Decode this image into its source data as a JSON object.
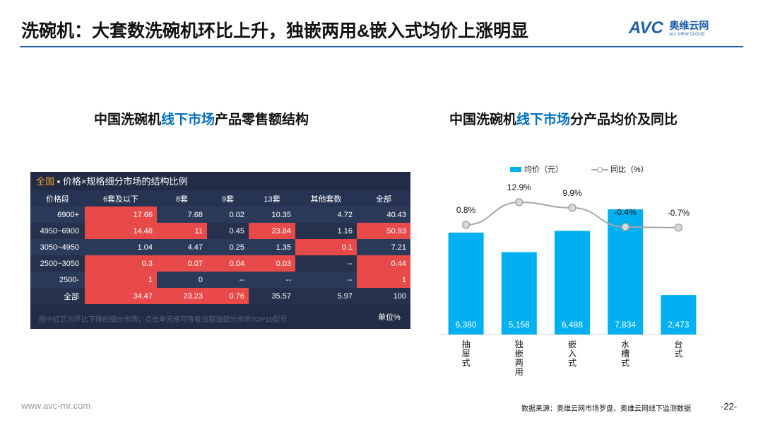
{
  "header": {
    "title": "洗碗机：大套数洗碗机环比上升，独嵌两用&嵌入式均价上涨明显",
    "logo": "AVC",
    "logo_cn": "奥维云网",
    "logo_en": "ALL VIEW CLOUD"
  },
  "left_title": {
    "prefix": "中国洗碗机",
    "highlight": "线下市场",
    "suffix": "产品零售额结构"
  },
  "table": {
    "title_highlight": "全国",
    "title": "▪ 价格×规格细分市场的结构比例",
    "columns": [
      "价格段",
      "6套及以下",
      "8套",
      "9套",
      "13套",
      "其他套数",
      "全部"
    ],
    "rows": [
      {
        "label": "6900+",
        "cells": [
          "17.66",
          "7.68",
          "0.02",
          "10.35",
          "4.72",
          "40.43"
        ],
        "red": [
          true,
          false,
          false,
          false,
          false,
          false
        ]
      },
      {
        "label": "4950~6900",
        "cells": [
          "14.48",
          "11",
          "0.45",
          "23.84",
          "1.16",
          "50.93"
        ],
        "red": [
          true,
          true,
          false,
          true,
          false,
          true
        ]
      },
      {
        "label": "3050~4950",
        "cells": [
          "1.04",
          "4.47",
          "0.25",
          "1.35",
          "0.1",
          "7.21"
        ],
        "red": [
          false,
          false,
          false,
          false,
          true,
          false
        ]
      },
      {
        "label": "2500~3050",
        "cells": [
          "0.3",
          "0.07",
          "0.04",
          "0.03",
          "--",
          "0.44"
        ],
        "red": [
          true,
          true,
          true,
          true,
          false,
          true
        ]
      },
      {
        "label": "2500-",
        "cells": [
          "1",
          "0",
          "--",
          "--",
          "--",
          "1"
        ],
        "red": [
          true,
          false,
          false,
          false,
          false,
          true
        ]
      },
      {
        "label": "全部",
        "cells": [
          "34.47",
          "23.23",
          "0.76",
          "35.57",
          "5.97",
          "100"
        ],
        "red": [
          true,
          true,
          true,
          false,
          false,
          false
        ]
      }
    ],
    "note": "图中红区为环比下降的细分市场；点击单元格可查看当期该细分市场TOP10型号",
    "unit": "单位%"
  },
  "chart_data": {
    "type": "bar",
    "title_prefix": "中国洗碗机",
    "title_highlight": "线下市场",
    "title_suffix": "分产品均价及同比",
    "categories": [
      "抽屉式",
      "独嵌两用",
      "嵌入式",
      "水槽式",
      "台式"
    ],
    "series": [
      {
        "name": "均价（元）",
        "type": "bar",
        "color": "#00b0f0",
        "values": [
          6380,
          5158,
          6488,
          7834,
          2473
        ],
        "value_labels": [
          "6,380",
          "5,158",
          "6,488",
          "7,834",
          "2,473"
        ]
      },
      {
        "name": "同比（%）",
        "type": "line",
        "axis": "y2",
        "color": "#a6a6a6",
        "values": [
          0.8,
          12.9,
          9.9,
          -0.4,
          -0.7
        ],
        "value_labels": [
          "0.8%",
          "12.9%",
          "9.9%",
          "-0.4%",
          "-0.7%"
        ]
      }
    ]
  },
  "footer": {
    "url": "www.avc-mr.com",
    "source": "数据来源：奥维云网市场罗盘、奥维云网线下监测数据",
    "page": "-22-"
  }
}
